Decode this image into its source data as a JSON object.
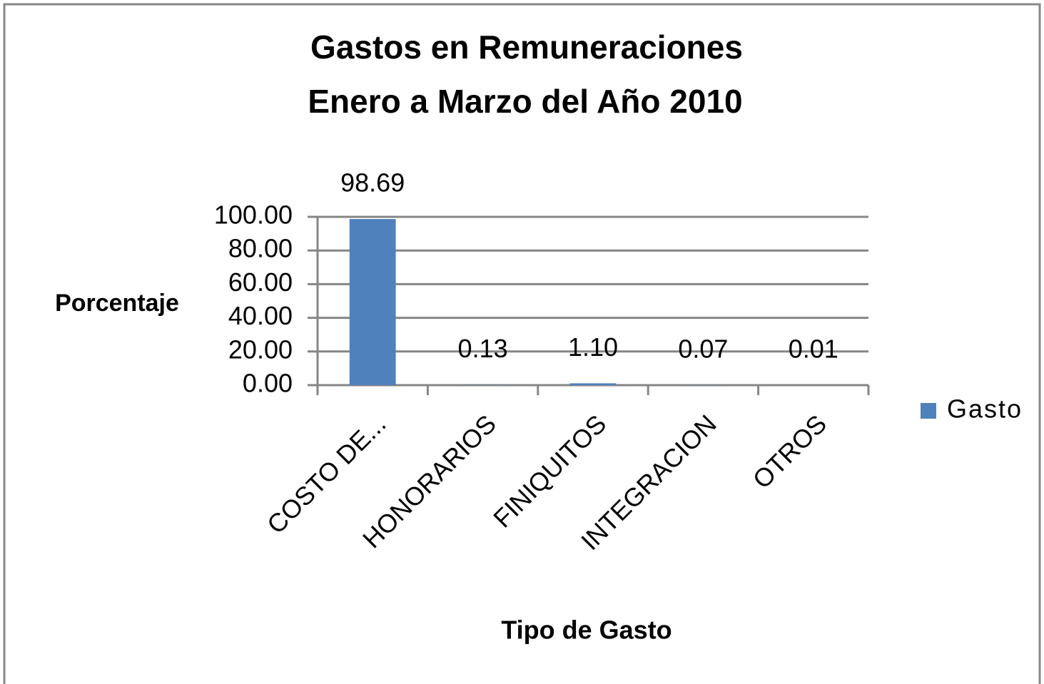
{
  "chart_data": {
    "type": "bar",
    "title": "Gastos en Remuneraciones",
    "subtitle": "Enero a Marzo del Año 2010",
    "x_label": "Tipo de Gasto",
    "y_label": "Porcentaje",
    "categories": [
      "COSTO DE...",
      "HONORARIOS",
      "FINIQUITOS",
      "INTEGRACION",
      "OTROS"
    ],
    "series": [
      {
        "name": "Gasto",
        "color": "#4f81bd",
        "values": [
          98.69,
          0.13,
          1.1,
          0.07,
          0.01
        ],
        "value_labels": [
          "98.69",
          "0.13",
          "1.10",
          "0.07",
          "0.01"
        ]
      }
    ],
    "ylim": [
      0,
      100
    ],
    "yticks": [
      {
        "value": 0,
        "label": "0.00"
      },
      {
        "value": 20,
        "label": "20.00"
      },
      {
        "value": 40,
        "label": "40.00"
      },
      {
        "value": 60,
        "label": "60.00"
      },
      {
        "value": 80,
        "label": "80.00"
      },
      {
        "value": 100,
        "label": "100.00"
      }
    ],
    "grid": true,
    "legend": "right"
  }
}
